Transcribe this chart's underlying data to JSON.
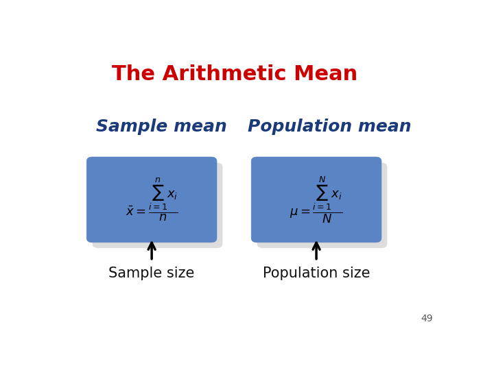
{
  "title": "The Arithmetic Mean",
  "title_color": "#cc0000",
  "title_fontsize": 22,
  "bg_color": "#ffffff",
  "box_facecolor": "#5b84c4",
  "box_shadow_color": "#dddddd",
  "box_edgecolor": "#5b84c4",
  "sample_mean_label": "Sample mean",
  "population_mean_label": "Population mean",
  "sample_size_label": "Sample size",
  "population_size_label": "Population size",
  "label_color": "#1a3a7a",
  "label_fontsize": 18,
  "sublabel_fontsize": 15,
  "sublabel_color": "#111111",
  "page_number": "49",
  "formula_sample": "$\\bar{x}= \\dfrac{\\sum_{i=1}^{n} x_i}{n}$",
  "formula_population": "$\\mu = \\dfrac{\\sum_{i=1}^{N} x_i}{N}$",
  "formula_fontsize": 13
}
